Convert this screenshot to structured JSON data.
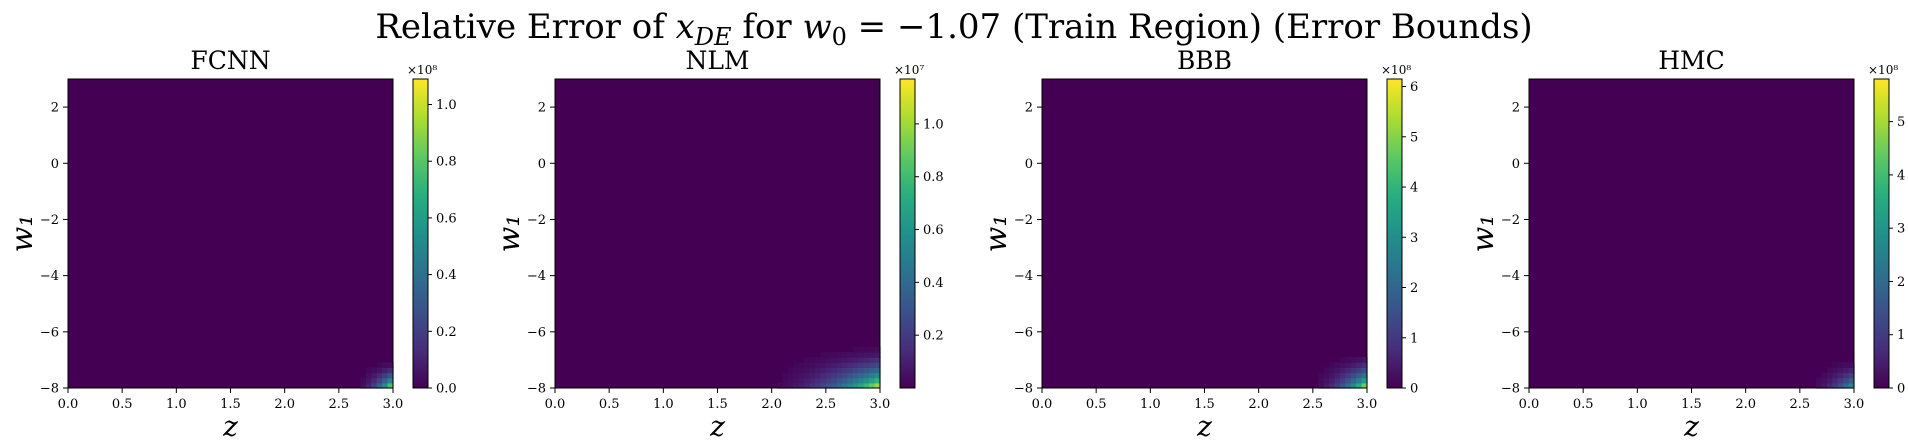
{
  "figure": {
    "title": "Relative Error of x_DE for w₀ = −1.07 (Train Region) (Error Bounds)",
    "title_parts": {
      "prefix": "Relative Error of ",
      "var": "x",
      "var_sub": "DE",
      "mid": " for ",
      "w": "w",
      "w_sub": "0",
      "suffix": " = −1.07 (Train Region) (Error Bounds)"
    }
  },
  "colormap": [
    "#440154",
    "#472d7b",
    "#3b528b",
    "#2c728e",
    "#21918c",
    "#28ae80",
    "#5ec962",
    "#addc30",
    "#fde725"
  ],
  "chart_data": [
    {
      "type": "heatmap",
      "title": "FCNN",
      "xlabel": "z",
      "ylabel": "w₁",
      "xlim": [
        0.0,
        3.0
      ],
      "ylim": [
        -8,
        3
      ],
      "xticks": [
        "0.0",
        "0.5",
        "1.0",
        "1.5",
        "2.0",
        "2.5",
        "3.0"
      ],
      "yticks": [
        "2",
        "0",
        "−2",
        "−4",
        "−6",
        "−8"
      ],
      "colorbar": {
        "min": 0.0,
        "max": 1.09,
        "ticks": [
          0.0,
          0.2,
          0.4,
          0.6,
          0.8,
          1.0
        ],
        "tick_labels": [
          "0.0",
          "0.2",
          "0.4",
          "0.6",
          "0.8",
          "1.0"
        ],
        "exponent": "×10⁸"
      },
      "hotspot": {
        "z_peak": 3.0,
        "w1_peak": -8,
        "extent_z": [
          2.6,
          3.0
        ],
        "extent_w1": [
          -8,
          -6.9
        ],
        "peak_value": 1.09
      }
    },
    {
      "type": "heatmap",
      "title": "NLM",
      "xlabel": "z",
      "ylabel": "w₁",
      "xlim": [
        0.0,
        3.0
      ],
      "ylim": [
        -8,
        3
      ],
      "xticks": [
        "0.0",
        "0.5",
        "1.0",
        "1.5",
        "2.0",
        "2.5",
        "3.0"
      ],
      "yticks": [
        "2",
        "0",
        "−2",
        "−4",
        "−6",
        "−8"
      ],
      "colorbar": {
        "min": 0.0,
        "max": 1.17,
        "ticks": [
          0.2,
          0.4,
          0.6,
          0.8,
          1.0
        ],
        "tick_labels": [
          "0.2",
          "0.4",
          "0.6",
          "0.8",
          "1.0"
        ],
        "exponent": "×10⁷"
      },
      "hotspot": {
        "z_peak": 3.0,
        "w1_peak": -8,
        "extent_z": [
          1.8,
          3.0
        ],
        "extent_w1": [
          -8,
          -6.3
        ],
        "peak_value": 1.17
      }
    },
    {
      "type": "heatmap",
      "title": "BBB",
      "xlabel": "z",
      "ylabel": "w₁",
      "xlim": [
        0.0,
        3.0
      ],
      "ylim": [
        -8,
        3
      ],
      "xticks": [
        "0.0",
        "0.5",
        "1.0",
        "1.5",
        "2.0",
        "2.5",
        "3.0"
      ],
      "yticks": [
        "2",
        "0",
        "−2",
        "−4",
        "−6",
        "−8"
      ],
      "colorbar": {
        "min": 0,
        "max": 6.15,
        "ticks": [
          0,
          1,
          2,
          3,
          4,
          5,
          6
        ],
        "tick_labels": [
          "0",
          "1",
          "2",
          "3",
          "4",
          "5",
          "6"
        ],
        "exponent": "×10⁸"
      },
      "hotspot": {
        "z_peak": 3.0,
        "w1_peak": -8,
        "extent_z": [
          2.4,
          3.0
        ],
        "extent_w1": [
          -8,
          -6.6
        ],
        "peak_value": 6.15
      }
    },
    {
      "type": "heatmap",
      "title": "HMC",
      "xlabel": "z",
      "ylabel": "w₁",
      "xlim": [
        0.0,
        3.0
      ],
      "ylim": [
        -8,
        3
      ],
      "xticks": [
        "0.0",
        "0.5",
        "1.0",
        "1.5",
        "2.0",
        "2.5",
        "3.0"
      ],
      "yticks": [
        "2",
        "0",
        "−2",
        "−4",
        "−6",
        "−8"
      ],
      "colorbar": {
        "min": 0,
        "max": 5.8,
        "ticks": [
          0,
          1,
          2,
          3,
          4,
          5
        ],
        "tick_labels": [
          "0",
          "1",
          "2",
          "3",
          "4",
          "5"
        ],
        "exponent": "×10⁸"
      },
      "hotspot": {
        "z_peak": 3.0,
        "w1_peak": -8,
        "extent_z": [
          2.5,
          3.0
        ],
        "extent_w1": [
          -8,
          -6.8
        ],
        "peak_value": 3.5
      }
    }
  ]
}
